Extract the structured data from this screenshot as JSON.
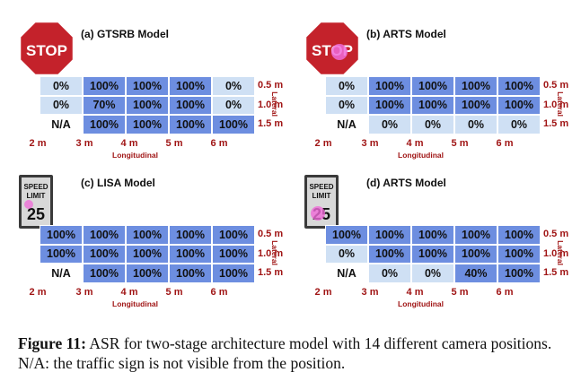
{
  "figure": {
    "caption_label": "Figure 11:",
    "caption_text": " ASR for two-stage architecture model with 14 different camera positions. N/A: the traffic sign is not visible from the position.",
    "axis_x_label": "Longitudinal",
    "axis_y_label": "Lateral",
    "lateral_labels": [
      "0.5 m",
      "1.0 m",
      "1.5 m"
    ],
    "longitudinal_labels": [
      "2 m",
      "3 m",
      "4 m",
      "5 m",
      "6 m"
    ],
    "stop_sign_text": "STOP",
    "speed_sign": {
      "line1": "SPEED",
      "line2": "LIMIT",
      "value": "25"
    },
    "colors": {
      "full": "#6d8ee0",
      "partial": "#cfe0f4",
      "none": "#ffffff",
      "label": "#a01515",
      "stop_red": "#c4222b"
    }
  },
  "panels": [
    {
      "title": "(a) GTSRB Model",
      "sign": "stop",
      "cells": [
        [
          {
            "v": "0%",
            "c": "light"
          },
          {
            "v": "100%",
            "c": "blue"
          },
          {
            "v": "100%",
            "c": "blue"
          },
          {
            "v": "100%",
            "c": "blue"
          },
          {
            "v": "0%",
            "c": "light"
          }
        ],
        [
          {
            "v": "0%",
            "c": "light"
          },
          {
            "v": "70%",
            "c": "blue"
          },
          {
            "v": "100%",
            "c": "blue"
          },
          {
            "v": "100%",
            "c": "blue"
          },
          {
            "v": "0%",
            "c": "light"
          }
        ],
        [
          {
            "v": "N/A",
            "c": "white"
          },
          {
            "v": "100%",
            "c": "blue"
          },
          {
            "v": "100%",
            "c": "blue"
          },
          {
            "v": "100%",
            "c": "blue"
          },
          {
            "v": "100%",
            "c": "blue"
          }
        ]
      ]
    },
    {
      "title": "(b) ARTS Model",
      "sign": "stop-patched",
      "cells": [
        [
          {
            "v": "0%",
            "c": "light"
          },
          {
            "v": "100%",
            "c": "blue"
          },
          {
            "v": "100%",
            "c": "blue"
          },
          {
            "v": "100%",
            "c": "blue"
          },
          {
            "v": "100%",
            "c": "blue"
          }
        ],
        [
          {
            "v": "0%",
            "c": "light"
          },
          {
            "v": "100%",
            "c": "blue"
          },
          {
            "v": "100%",
            "c": "blue"
          },
          {
            "v": "100%",
            "c": "blue"
          },
          {
            "v": "100%",
            "c": "blue"
          }
        ],
        [
          {
            "v": "N/A",
            "c": "white"
          },
          {
            "v": "0%",
            "c": "light"
          },
          {
            "v": "0%",
            "c": "light"
          },
          {
            "v": "0%",
            "c": "light"
          },
          {
            "v": "0%",
            "c": "light"
          }
        ]
      ]
    },
    {
      "title": "(c) LISA Model",
      "sign": "speed",
      "cells": [
        [
          {
            "v": "100%",
            "c": "blue"
          },
          {
            "v": "100%",
            "c": "blue"
          },
          {
            "v": "100%",
            "c": "blue"
          },
          {
            "v": "100%",
            "c": "blue"
          },
          {
            "v": "100%",
            "c": "blue"
          }
        ],
        [
          {
            "v": "100%",
            "c": "blue"
          },
          {
            "v": "100%",
            "c": "blue"
          },
          {
            "v": "100%",
            "c": "blue"
          },
          {
            "v": "100%",
            "c": "blue"
          },
          {
            "v": "100%",
            "c": "blue"
          }
        ],
        [
          {
            "v": "N/A",
            "c": "white"
          },
          {
            "v": "100%",
            "c": "blue"
          },
          {
            "v": "100%",
            "c": "blue"
          },
          {
            "v": "100%",
            "c": "blue"
          },
          {
            "v": "100%",
            "c": "blue"
          }
        ]
      ]
    },
    {
      "title": "(d) ARTS Model",
      "sign": "speed-patched",
      "cells": [
        [
          {
            "v": "100%",
            "c": "blue"
          },
          {
            "v": "100%",
            "c": "blue"
          },
          {
            "v": "100%",
            "c": "blue"
          },
          {
            "v": "100%",
            "c": "blue"
          },
          {
            "v": "100%",
            "c": "blue"
          }
        ],
        [
          {
            "v": "0%",
            "c": "light"
          },
          {
            "v": "100%",
            "c": "blue"
          },
          {
            "v": "100%",
            "c": "blue"
          },
          {
            "v": "100%",
            "c": "blue"
          },
          {
            "v": "100%",
            "c": "blue"
          }
        ],
        [
          {
            "v": "N/A",
            "c": "white"
          },
          {
            "v": "0%",
            "c": "light"
          },
          {
            "v": "0%",
            "c": "light"
          },
          {
            "v": "40%",
            "c": "blue"
          },
          {
            "v": "100%",
            "c": "blue"
          }
        ]
      ]
    }
  ]
}
